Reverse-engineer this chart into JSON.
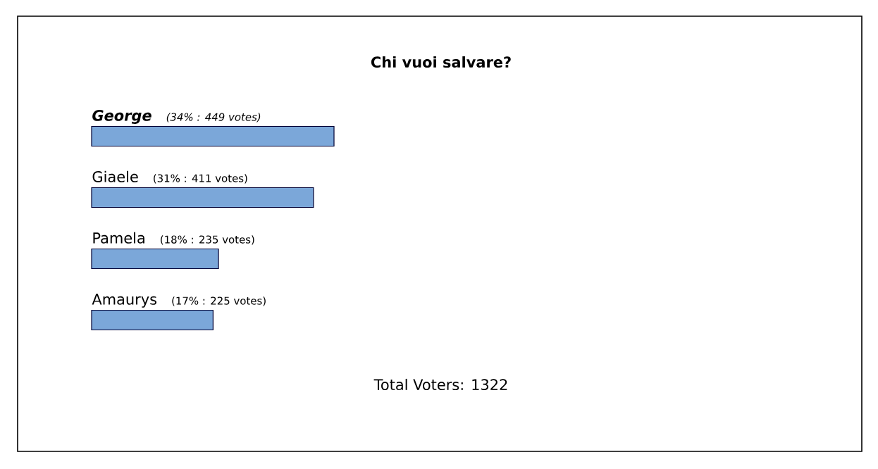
{
  "chart_data": {
    "type": "bar",
    "orientation": "horizontal",
    "title": "Chi vuoi salvare?",
    "categories": [
      "George",
      "Giaele",
      "Pamela",
      "Amaurys"
    ],
    "values": [
      449,
      411,
      235,
      225
    ],
    "value_labels": [
      "(34% : 449 votes)",
      "(31% : 411 votes)",
      "(18% : 235 votes)",
      "(17% : 225 votes)"
    ],
    "color": "#7ba7d9",
    "annotations": [
      "Total Voters: 1322"
    ]
  }
}
